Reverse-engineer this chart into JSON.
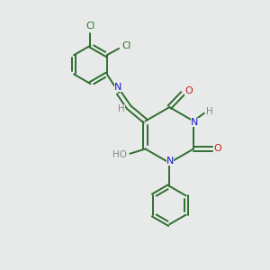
{
  "bg_color": "#e8eaea",
  "bond_color": "#2d6e2d",
  "atom_colors": {
    "N": "#1a1acc",
    "O": "#cc1a1a",
    "Cl": "#2d6e2d",
    "H": "#888888"
  },
  "figsize": [
    3.0,
    3.0
  ],
  "dpi": 100,
  "lw": 1.4
}
